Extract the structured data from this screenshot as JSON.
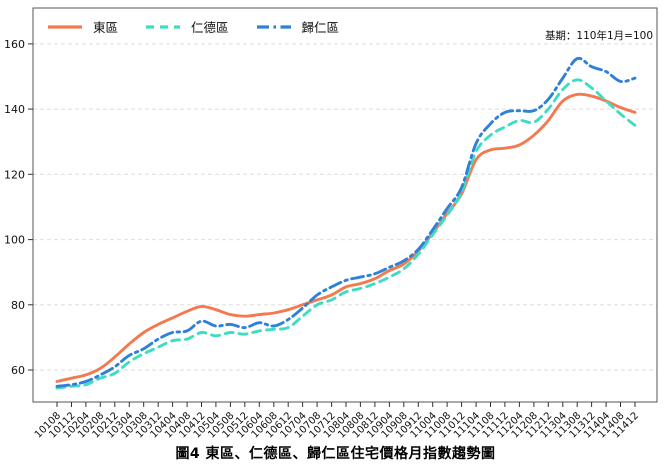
{
  "chart_data": {
    "type": "line",
    "title": "圖4 東區、仁德區、歸仁區住宅價格月指數趨勢圖",
    "note": "基期：110年1月=100",
    "xlabel": "",
    "ylabel": "",
    "ylim": [
      50.2,
      171
    ],
    "yticks": [
      60,
      80,
      100,
      120,
      140,
      160
    ],
    "grid": true,
    "legend_position": "top-left",
    "x_labels": [
      "10108",
      "10112",
      "10204",
      "10208",
      "10212",
      "10304",
      "10308",
      "10312",
      "10404",
      "10408",
      "10412",
      "10504",
      "10508",
      "10512",
      "10604",
      "10608",
      "10612",
      "10704",
      "10708",
      "10712",
      "10804",
      "10808",
      "10812",
      "10904",
      "10908",
      "10912",
      "11004",
      "11008",
      "11012",
      "11104",
      "11108",
      "11112",
      "11204",
      "11208",
      "11212",
      "11304",
      "11308",
      "11312",
      "11404",
      "11408",
      "11412"
    ],
    "series": [
      {
        "name": "東區",
        "color": "#f5794e",
        "style": "solid",
        "values": [
          56.5,
          57.5,
          58.5,
          60.5,
          64,
          68,
          71.5,
          74,
          76,
          78,
          79.5,
          78.5,
          77,
          76.5,
          77,
          77.5,
          78.5,
          80,
          81.5,
          83,
          85.5,
          86.5,
          88,
          90.5,
          92.5,
          96.5,
          102,
          108,
          114,
          124.5,
          127.5,
          128,
          129,
          132,
          136.5,
          142.5,
          144.5,
          144,
          142.5,
          140.5,
          139
        ]
      },
      {
        "name": "仁德區",
        "color": "#3eddc2",
        "style": "dashed",
        "values": [
          54.5,
          55,
          55.5,
          57.5,
          59,
          62.5,
          65,
          67,
          69,
          69.5,
          71.5,
          70.5,
          71.5,
          71,
          72,
          72.5,
          73,
          76.5,
          80,
          81.5,
          84,
          85,
          86.5,
          88.5,
          91,
          95.5,
          101.5,
          107.5,
          114.5,
          127,
          132,
          134.5,
          136.5,
          136,
          140,
          146,
          149,
          146.5,
          142.5,
          138.5,
          135
        ]
      },
      {
        "name": "歸仁區",
        "color": "#2e80d9",
        "style": "dashdot",
        "values": [
          55,
          55.5,
          56.5,
          58.5,
          61,
          64.5,
          66.5,
          69.5,
          71.5,
          72,
          75,
          73.5,
          74,
          73,
          74.5,
          73.5,
          75.5,
          79,
          83,
          85.5,
          87.5,
          88.5,
          89.5,
          91.5,
          93.5,
          97,
          103,
          109.5,
          116,
          129.5,
          135.5,
          139,
          139.5,
          139.5,
          143,
          149.5,
          155.5,
          153,
          151.5,
          148.5,
          149.5
        ]
      }
    ]
  }
}
